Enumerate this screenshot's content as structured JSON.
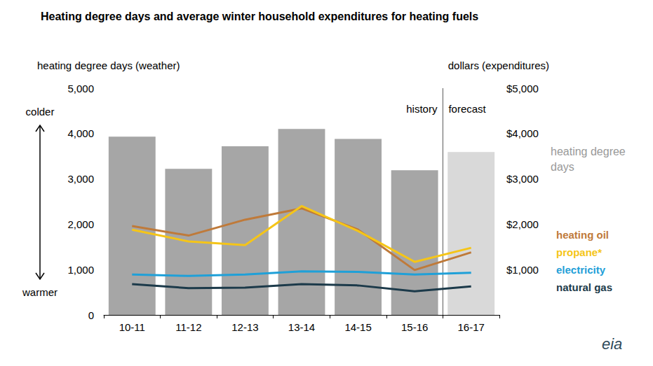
{
  "chart_data": {
    "type": "bar",
    "title": "Heating degree days and average winter household expenditures for heating fuels",
    "y_label": "heating degree days (weather)",
    "y2_label": "dollars (expenditures)",
    "categories": [
      "10-11",
      "11-12",
      "12-13",
      "13-14",
      "14-15",
      "15-16",
      "16-17"
    ],
    "series": [
      {
        "name": "heating degree days",
        "type": "bar",
        "colors": [
          "#a6a6a6",
          "#a6a6a6",
          "#a6a6a6",
          "#a6a6a6",
          "#a6a6a6",
          "#a6a6a6",
          "#d9d9d9"
        ],
        "color": "#a6a6a6",
        "values": [
          3930,
          3220,
          3720,
          4100,
          3880,
          3190,
          3590
        ]
      },
      {
        "name": "heating oil",
        "type": "line",
        "axis": "y2",
        "color": "#bf7a3a",
        "values": [
          1960,
          1750,
          2100,
          2350,
          1880,
          990,
          1380
        ]
      },
      {
        "name": "propane*",
        "type": "line",
        "axis": "y2",
        "color": "#f5c518",
        "values": [
          1880,
          1620,
          1540,
          2400,
          1850,
          1170,
          1480
        ]
      },
      {
        "name": "electricity",
        "type": "line",
        "axis": "y2",
        "color": "#1fa0d8",
        "values": [
          890,
          860,
          890,
          960,
          950,
          890,
          930
        ]
      },
      {
        "name": "natural gas",
        "type": "line",
        "axis": "y2",
        "color": "#1c3a4a",
        "values": [
          680,
          590,
          600,
          680,
          650,
          520,
          630
        ]
      }
    ],
    "ylim": [
      0,
      5000
    ],
    "yticks": [
      0,
      {
        "value": 1000,
        "label": "1,000"
      },
      {
        "value": 2000,
        "label": "2,000"
      },
      {
        "value": 3000,
        "label": "3,000"
      },
      {
        "value": 4000,
        "label": "4,000"
      },
      {
        "value": 5000,
        "label": "5,000"
      }
    ],
    "y2lim": [
      0,
      5000
    ],
    "y2ticks": [
      {
        "value": 1000,
        "label": "$1,000"
      },
      {
        "value": 2000,
        "label": "$2,000"
      },
      {
        "value": 3000,
        "label": "$3,000"
      },
      {
        "value": 4000,
        "label": "$4,000"
      },
      {
        "value": 5000,
        "label": "$5,000"
      }
    ],
    "annotations": {
      "colder": "colder",
      "warmer": "warmer",
      "history": "history",
      "forecast": "forecast",
      "source": "eia"
    },
    "grid": false,
    "legend": "right"
  }
}
